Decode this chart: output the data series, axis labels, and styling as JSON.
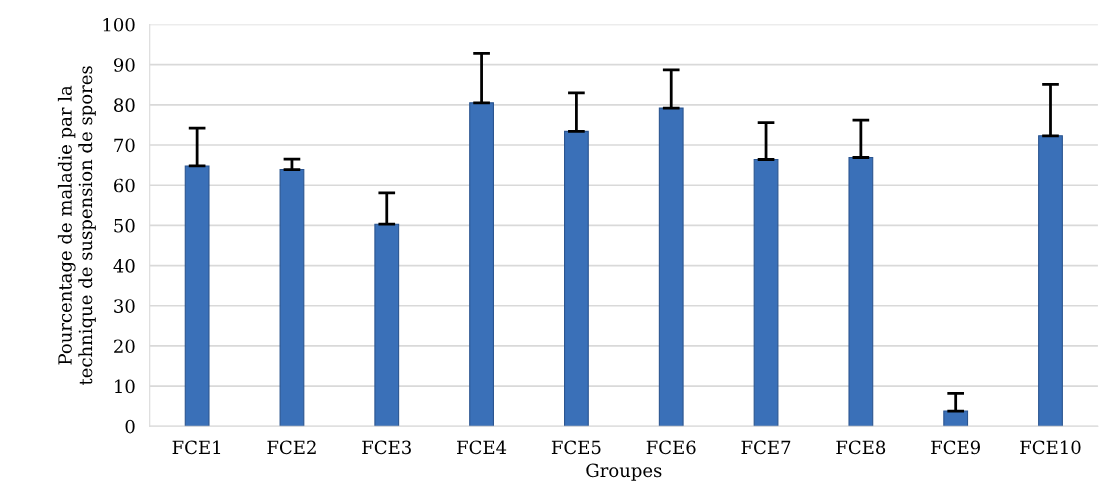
{
  "chart_data": {
    "type": "bar",
    "xlabel": "Groupes",
    "ylabel": "Pourcentage de maladie par la\ntechnique de suspension de spores",
    "categories": [
      "FCE1",
      "FCE2",
      "FCE3",
      "FCE4",
      "FCE5",
      "FCE6",
      "FCE7",
      "FCE8",
      "FCE9",
      "FCE10"
    ],
    "values": [
      64.8,
      63.9,
      50.3,
      80.5,
      73.4,
      79.2,
      66.4,
      66.9,
      3.8,
      72.3
    ],
    "errors": [
      [
        64.8,
        74.2
      ],
      [
        63.9,
        66.5
      ],
      [
        50.3,
        58.1
      ],
      [
        80.5,
        92.8
      ],
      [
        73.4,
        83.0
      ],
      [
        79.2,
        88.7
      ],
      [
        66.4,
        75.6
      ],
      [
        66.9,
        76.2
      ],
      [
        3.8,
        8.2
      ],
      [
        72.3,
        85.1
      ]
    ],
    "color": "#3a70b8",
    "ylim": [
      0,
      100
    ],
    "yticks": [
      0,
      10,
      20,
      30,
      40,
      50,
      60,
      70,
      80,
      90,
      100
    ],
    "grid": "y",
    "legend": false
  }
}
